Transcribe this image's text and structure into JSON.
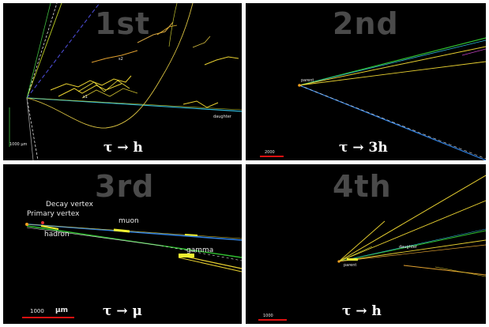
{
  "panels": [
    {
      "id": "1st",
      "title": "1st",
      "caption": "τ → h",
      "labels": {
        "s1": "s1",
        "s2": "s2",
        "daughter": "daughter",
        "scale": "1000 μm"
      }
    },
    {
      "id": "2nd",
      "title": "2nd",
      "caption": "τ → 3h",
      "labels": {
        "parent": "parent",
        "scale": "2000"
      }
    },
    {
      "id": "3rd",
      "title": "3rd",
      "caption": "τ → μ",
      "labels": {
        "decay_vertex": "Decay vertex",
        "primary_vertex": "Primary vertex",
        "hadron": "hadron",
        "muon": "muon",
        "gamma": "gamma",
        "scale": "1000",
        "scale_unit": "μm"
      }
    },
    {
      "id": "4th",
      "title": "4th",
      "caption": "τ → h",
      "labels": {
        "daughter": "daughter",
        "parent": "parent",
        "scale": "1000"
      }
    }
  ],
  "colors": {
    "background": "#000000",
    "title_gray": "#4a4a4a",
    "track_yellow": "#e8d030",
    "track_cyan": "#30b8d8",
    "track_green": "#30c030",
    "track_blue": "#3080e0",
    "scale_red": "#e01010"
  }
}
